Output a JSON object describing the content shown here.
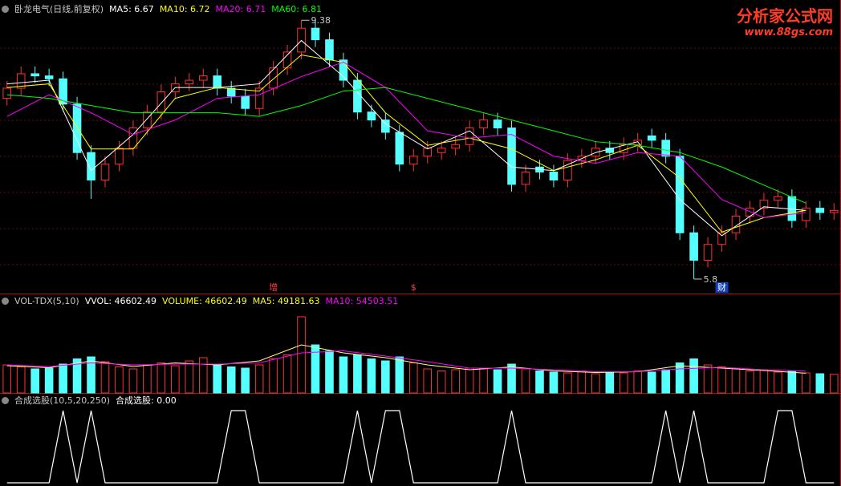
{
  "watermark": {
    "title": "分析家公式网",
    "url": "www.88gs.com"
  },
  "chart_data": [
    {
      "type": "candlestick",
      "header": [
        {
          "text": "卧龙电气(日线,前复权)",
          "color": "#c8c8c8"
        },
        {
          "text": "MA5: 6.67",
          "color": "#ffffff"
        },
        {
          "text": "MA10: 6.72",
          "color": "#ffff00"
        },
        {
          "text": "MA20: 6.71",
          "color": "#ff00ff"
        },
        {
          "text": "MA60: 6.81",
          "color": "#00ff00"
        }
      ],
      "open": [
        8.3,
        8.44,
        8.64,
        8.61,
        8.57,
        8.22,
        7.55,
        7.17,
        7.39,
        7.61,
        7.89,
        8.11,
        8.39,
        8.5,
        8.55,
        8.61,
        8.44,
        8.33,
        8.16,
        8.44,
        8.72,
        8.94,
        9.27,
        9.11,
        8.83,
        8.55,
        8.11,
        8.0,
        7.83,
        7.39,
        7.5,
        7.55,
        7.61,
        7.66,
        7.89,
        8.0,
        7.89,
        7.11,
        7.35,
        7.28,
        7.17,
        7.44,
        7.5,
        7.61,
        7.55,
        7.66,
        7.78,
        7.72,
        7.5,
        6.44,
        6.06,
        6.28,
        6.44,
        6.67,
        6.78,
        6.89,
        6.94,
        6.61,
        6.78,
        6.72
      ],
      "high": [
        8.54,
        8.74,
        8.74,
        8.71,
        8.67,
        8.32,
        7.65,
        7.49,
        7.71,
        7.99,
        8.21,
        8.49,
        8.6,
        8.65,
        8.71,
        8.71,
        8.54,
        8.43,
        8.54,
        8.82,
        9.04,
        9.38,
        9.37,
        9.21,
        8.93,
        8.65,
        8.21,
        8.1,
        7.93,
        7.6,
        7.71,
        7.71,
        7.76,
        7.99,
        8.1,
        8.1,
        7.99,
        7.38,
        7.45,
        7.38,
        7.54,
        7.6,
        7.71,
        7.71,
        7.76,
        7.82,
        7.88,
        7.82,
        7.6,
        6.54,
        6.38,
        6.54,
        6.77,
        6.88,
        6.99,
        7.04,
        7.04,
        6.88,
        6.88,
        6.85
      ],
      "low": [
        8.2,
        8.34,
        8.51,
        8.47,
        8.12,
        7.45,
        6.91,
        7.07,
        7.29,
        7.51,
        7.79,
        8.01,
        8.29,
        8.4,
        8.45,
        8.34,
        8.23,
        8.06,
        8.06,
        8.34,
        8.62,
        8.84,
        9.01,
        8.73,
        8.45,
        8.01,
        7.9,
        7.73,
        7.29,
        7.29,
        7.4,
        7.45,
        7.51,
        7.56,
        7.79,
        7.79,
        7.01,
        7.01,
        7.18,
        7.07,
        7.07,
        7.34,
        7.4,
        7.45,
        7.45,
        7.56,
        7.62,
        7.4,
        6.34,
        5.8,
        5.96,
        6.18,
        6.34,
        6.57,
        6.68,
        6.79,
        6.51,
        6.51,
        6.62,
        6.62
      ],
      "close": [
        8.44,
        8.64,
        8.61,
        8.57,
        8.22,
        7.55,
        7.17,
        7.39,
        7.61,
        7.89,
        8.11,
        8.39,
        8.5,
        8.55,
        8.61,
        8.44,
        8.33,
        8.16,
        8.44,
        8.72,
        8.94,
        9.27,
        9.11,
        8.83,
        8.55,
        8.11,
        8.0,
        7.83,
        7.39,
        7.5,
        7.61,
        7.61,
        7.66,
        7.89,
        8.0,
        7.89,
        7.11,
        7.28,
        7.28,
        7.17,
        7.44,
        7.5,
        7.61,
        7.55,
        7.66,
        7.72,
        7.72,
        7.5,
        6.44,
        6.06,
        6.28,
        6.44,
        6.67,
        6.78,
        6.89,
        6.94,
        6.61,
        6.78,
        6.72,
        6.75
      ],
      "up_color": "#ff3232",
      "down_color": "#54ffff",
      "ylim": [
        5.6,
        9.66
      ],
      "events": [
        null,
        null,
        null,
        null,
        null,
        null,
        null,
        null,
        null,
        null,
        null,
        null,
        null,
        null,
        null,
        null,
        null,
        null,
        null,
        "增",
        null,
        null,
        null,
        null,
        null,
        null,
        null,
        null,
        null,
        "$",
        null,
        null,
        null,
        null,
        null,
        null,
        null,
        null,
        null,
        null,
        null,
        null,
        null,
        null,
        null,
        null,
        null,
        null,
        null,
        null,
        null,
        "财",
        null,
        null,
        null,
        null,
        null,
        null,
        null,
        null
      ],
      "ma_x": [
        0,
        3,
        6,
        9,
        12,
        15,
        18,
        21,
        24,
        27,
        30,
        33,
        36,
        39,
        42,
        45,
        48,
        51,
        54,
        57
      ],
      "series": [
        {
          "color": "#ffffff",
          "values": [
            8.5,
            8.55,
            7.3,
            7.8,
            8.45,
            8.45,
            8.5,
            9.1,
            8.6,
            7.95,
            7.6,
            7.85,
            7.35,
            7.3,
            7.55,
            7.7,
            6.9,
            6.4,
            6.8,
            6.75
          ]
        },
        {
          "color": "#ffff00",
          "values": [
            8.45,
            8.5,
            7.6,
            7.6,
            8.3,
            8.45,
            8.4,
            8.9,
            8.8,
            8.1,
            7.65,
            7.75,
            7.6,
            7.3,
            7.45,
            7.65,
            7.2,
            6.45,
            6.65,
            6.75
          ]
        },
        {
          "color": "#ff00ff",
          "values": [
            8.05,
            8.35,
            8.1,
            7.8,
            8.0,
            8.3,
            8.35,
            8.6,
            8.8,
            8.45,
            7.85,
            7.75,
            7.8,
            7.5,
            7.4,
            7.55,
            7.5,
            6.9,
            6.65,
            6.72
          ]
        },
        {
          "color": "#00ff00",
          "values": [
            8.35,
            8.3,
            8.2,
            8.1,
            8.1,
            8.1,
            8.05,
            8.2,
            8.4,
            8.45,
            8.3,
            8.15,
            8.0,
            7.85,
            7.7,
            7.65,
            7.55,
            7.35,
            7.1,
            6.85
          ]
        }
      ]
    },
    {
      "type": "volume",
      "header": [
        {
          "text": "VOL-TDX(5,10)",
          "color": "#c8c8c8"
        },
        {
          "text": "VVOL: 46602.49",
          "color": "#ffffff"
        },
        {
          "text": "VOLUME: 46602.49",
          "color": "#ffff00"
        },
        {
          "text": "MA5: 49181.63",
          "color": "#ffff00"
        },
        {
          "text": "MA10: 54503.51",
          "color": "#ff00ff"
        }
      ],
      "values": [
        70000,
        65000,
        60000,
        62000,
        72000,
        85000,
        90000,
        78000,
        65000,
        60000,
        70000,
        75000,
        68000,
        80000,
        88000,
        70000,
        65000,
        62000,
        70000,
        85000,
        95000,
        190000,
        120000,
        105000,
        90000,
        95000,
        85000,
        80000,
        90000,
        75000,
        60000,
        55000,
        58000,
        62000,
        60000,
        58000,
        72000,
        60000,
        55000,
        52000,
        50000,
        55000,
        48000,
        52000,
        50000,
        55000,
        52000,
        58000,
        75000,
        85000,
        70000,
        65000,
        60000,
        55000,
        58000,
        52000,
        55000,
        50000,
        48000,
        46602.49
      ],
      "ylim": [
        0,
        200000
      ],
      "series": [
        {
          "color": "#ffff80",
          "values": [
            68000,
            63000,
            80000,
            66000,
            75000,
            70000,
            80000,
            120000,
            100000,
            88000,
            70000,
            58000,
            65000,
            55000,
            51000,
            53000,
            68000,
            62000,
            56000,
            49181.63
          ]
        },
        {
          "color": "#ff00ff",
          "values": [
            70000,
            66000,
            75000,
            70000,
            72000,
            72000,
            75000,
            100000,
            105000,
            92000,
            78000,
            62000,
            62000,
            58000,
            53000,
            53000,
            60000,
            64000,
            58000,
            54503.51
          ]
        }
      ]
    },
    {
      "type": "signal",
      "header": [
        {
          "text": "合成选股(10,5,20,250)",
          "color": "#c8c8c8"
        },
        {
          "text": "合成选股: 0.00",
          "color": "#ffffff"
        }
      ],
      "values": [
        0,
        0,
        0,
        0,
        1,
        0,
        1,
        0,
        0,
        0,
        0,
        0,
        0,
        0,
        0,
        0,
        1,
        1,
        0,
        0,
        0,
        0,
        0,
        0,
        0,
        1,
        0,
        1,
        1,
        0,
        0,
        0,
        0,
        0,
        0,
        0,
        1,
        0,
        0,
        0,
        0,
        0,
        0,
        0,
        0,
        0,
        0,
        1,
        0,
        1,
        0,
        0,
        0,
        0,
        0,
        1,
        1,
        0,
        0,
        0
      ],
      "ylim": [
        0,
        1
      ],
      "color": "#ffffff"
    }
  ]
}
